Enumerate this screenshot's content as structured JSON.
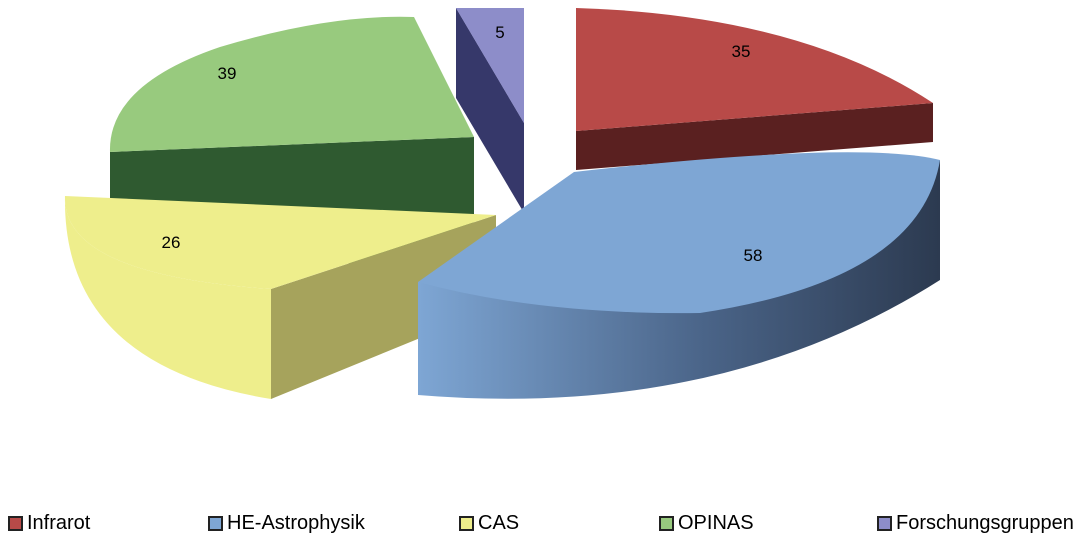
{
  "chart_data": {
    "type": "pie",
    "style": "3d-exploded",
    "legend_position": "bottom",
    "categories": [
      "Infrarot",
      "HE-Astrophysik",
      "CAS",
      "OPINAS",
      "Forschungsgruppen"
    ],
    "values": [
      35,
      58,
      26,
      39,
      5
    ],
    "colors": [
      "#b84a48",
      "#7ea6d4",
      "#eeee8c",
      "#98ca7e",
      "#8d8dc9"
    ],
    "side_colors": [
      "#5a2020",
      "#3a4a66",
      "#a6a35c",
      "#2f5a30",
      "#36386a"
    ],
    "data_labels": [
      "35",
      "58",
      "26",
      "39",
      "5"
    ]
  }
}
